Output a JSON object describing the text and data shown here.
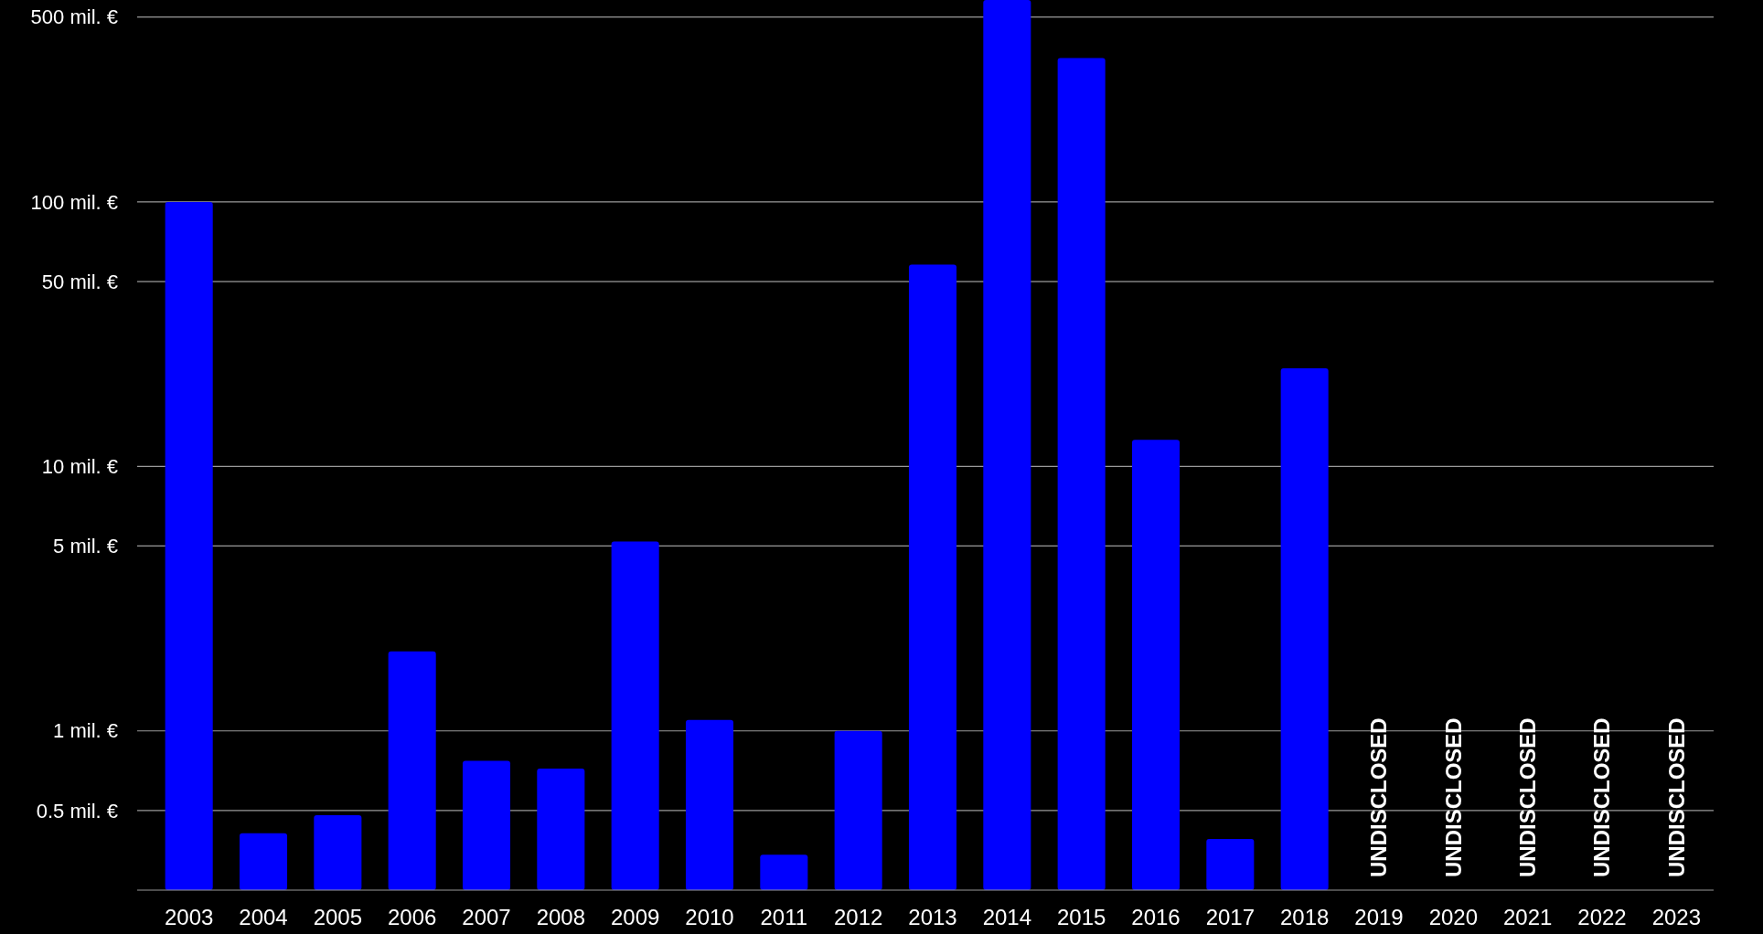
{
  "chart_data": {
    "type": "bar",
    "categories": [
      "2003",
      "2004",
      "2005",
      "2006",
      "2007",
      "2008",
      "2009",
      "2010",
      "2011",
      "2012",
      "2013",
      "2014",
      "2015",
      "2016",
      "2017",
      "2018",
      "2019",
      "2020",
      "2021",
      "2022",
      "2023"
    ],
    "values": [
      100,
      0.41,
      0.48,
      2.0,
      0.77,
      0.72,
      5.2,
      1.1,
      0.34,
      1.0,
      58,
      580,
      350,
      12.6,
      0.39,
      23.5,
      null,
      null,
      null,
      null,
      null
    ],
    "value_labels": [
      null,
      null,
      null,
      null,
      null,
      null,
      null,
      null,
      null,
      null,
      null,
      null,
      null,
      null,
      null,
      null,
      "UNDISCLOSED",
      "UNDISCLOSED",
      "UNDISCLOSED",
      "UNDISCLOSED",
      "UNDISCLOSED"
    ],
    "color": "#0000ff",
    "log": "y",
    "ylim": [
      0.25,
      580
    ],
    "yticks": [
      {
        "value": 0.5,
        "label": "0.5 mil. €"
      },
      {
        "value": 1,
        "label": "1 mil. €"
      },
      {
        "value": 5,
        "label": "5 mil. €"
      },
      {
        "value": 10,
        "label": "10 mil. €"
      },
      {
        "value": 50,
        "label": "50 mil. €"
      },
      {
        "value": 100,
        "label": "100 mil. €"
      },
      {
        "value": 500,
        "label": "500 mil. €"
      }
    ],
    "grid": "y"
  }
}
